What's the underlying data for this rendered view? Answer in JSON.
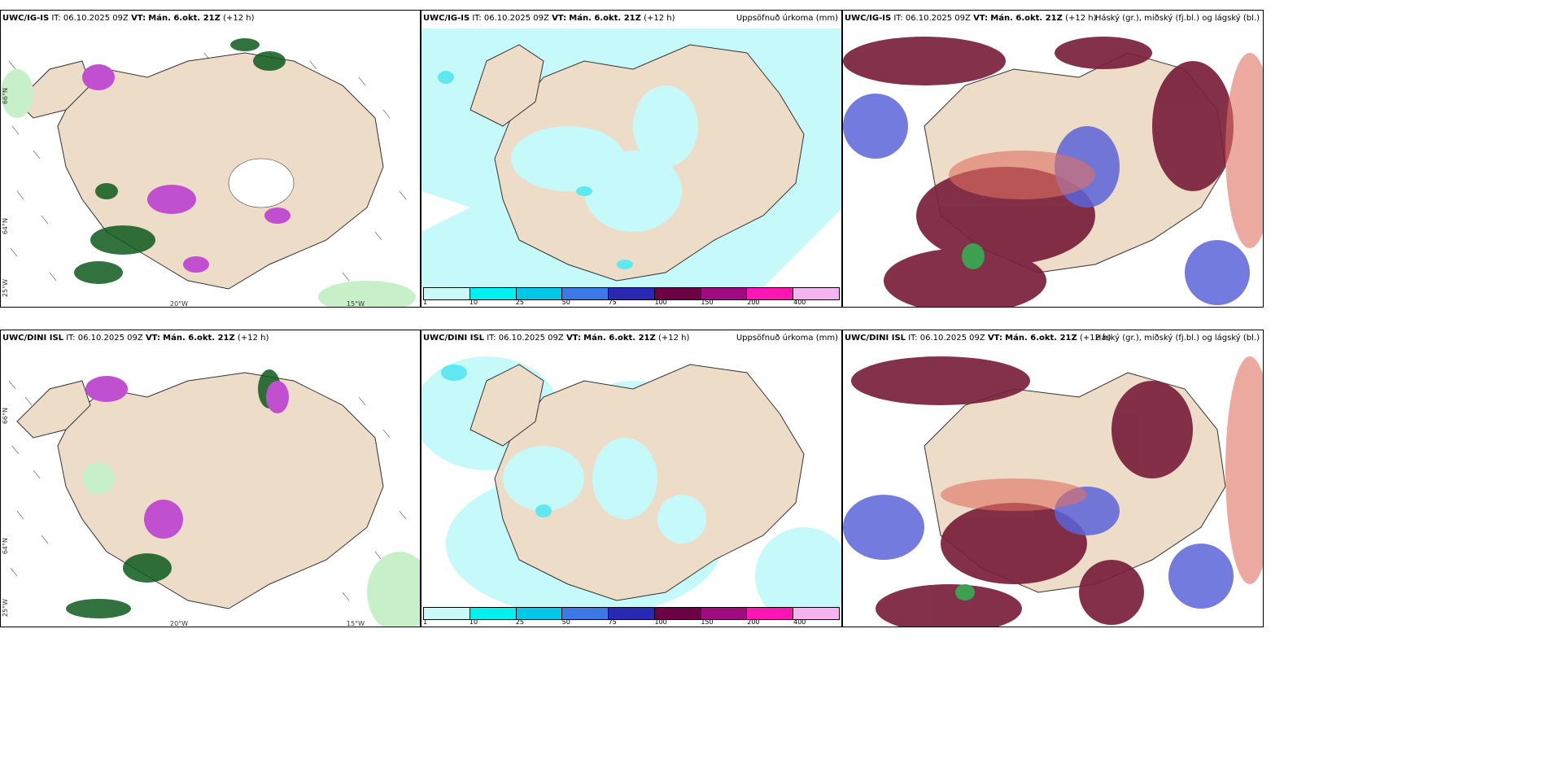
{
  "rows": [
    {
      "model": "UWC/IG-IS",
      "init_prefix": "IT:",
      "init": "06.10.2025 09Z",
      "valid_prefix": "VT:",
      "valid": "Mán. 6.okt. 21Z",
      "lead": "(+12 h)"
    },
    {
      "model": "UWC/DINI ISL",
      "init_prefix": "IT:",
      "init": "06.10.2025 09Z",
      "valid_prefix": "VT:",
      "valid": "Mán. 6.okt. 21Z",
      "lead": "(+12 h)"
    }
  ],
  "panels": {
    "precip_title": "Uppsöfnuð úrkoma (mm)",
    "cloud_title": "Háský (gr.), miðský (fj.bl.) og lágský (bl.)"
  },
  "colorbar": {
    "labels": [
      "1",
      "10",
      "25",
      "50",
      "75",
      "100",
      "150",
      "200",
      "400"
    ],
    "colors": [
      "#c8fafa",
      "#00f0f0",
      "#00c8e6",
      "#3c78e6",
      "#2828b4",
      "#6e0046",
      "#a00a82",
      "#ff14b4",
      "#f5b4f0"
    ]
  },
  "axis_labels": {
    "lat_top": "66°N",
    "lat_mid": "64°N",
    "lon_left": "25°W",
    "lon_20": "20°W",
    "lon_15": "15°W"
  },
  "colors": {
    "land": "#eddcc8",
    "sea_light": "#c6fafa",
    "sea_cyan": "#60e8f0",
    "green_dark": "#0e5a1e",
    "green_mid": "#3ca050",
    "green_light": "#c8f0c8",
    "purple": "#c050d0",
    "magenta_light": "#e6a0f0",
    "maroon": "#7a1f3c",
    "blue": "#5a64d8",
    "orange": "#e07060"
  }
}
